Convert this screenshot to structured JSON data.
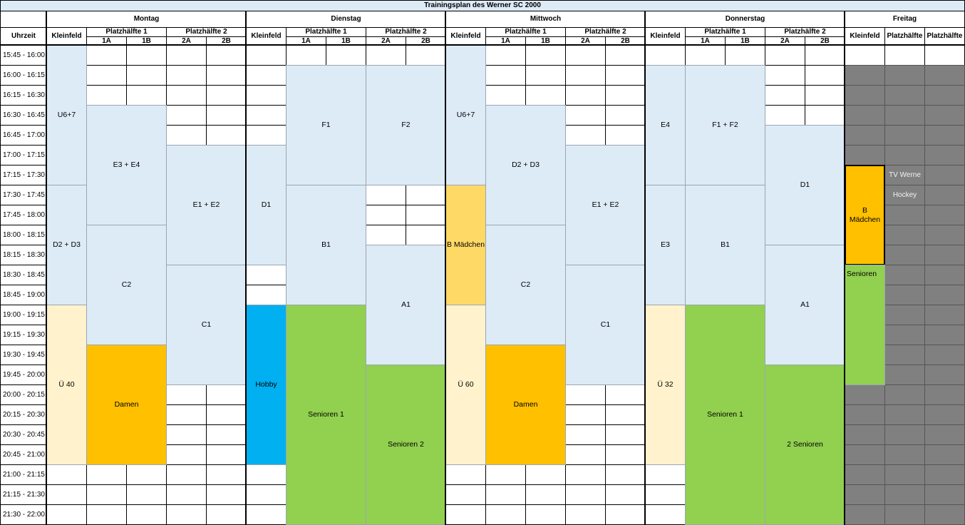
{
  "title": "Trainingsplan des Werner SC 2000",
  "time_header": "Uhrzeit",
  "times": [
    "15:45 - 16:00",
    "16:00 - 16:15",
    "16:15 - 16:30",
    "16:30 - 16:45",
    "16:45 - 17:00",
    "17:00 - 17:15",
    "17:15 - 17:30",
    "17:30 - 17:45",
    "17:45 - 18:00",
    "18:00 - 18:15",
    "18:15 - 18:30",
    "18:30 - 18:45",
    "18:45 - 19:00",
    "19:00 - 19:15",
    "19:15 - 19:30",
    "19:30 - 19:45",
    "19:45 - 20:00",
    "20:00 - 20:15",
    "20:15 - 20:30",
    "20:30 - 20:45",
    "20:45 - 21:00",
    "21:00 - 21:15",
    "21:15 - 21:30",
    "21:30 - 22:00"
  ],
  "days": [
    {
      "name": "Montag",
      "columns": [
        "Kleinfeld",
        "Platzhälfte 1",
        "Platzhälfte 2"
      ],
      "subcolumns": [
        "1A",
        "1B",
        "2A",
        "2B"
      ],
      "blocks": [
        "U6+7",
        "D2 + D3",
        "Ü 40",
        "E3 + E4",
        "C2",
        "Damen",
        "E1 + E2",
        "C1"
      ]
    },
    {
      "name": "Dienstag",
      "columns": [
        "Kleinfeld",
        "Platzhälfte 1",
        "Platzhälfte 2"
      ],
      "subcolumns": [
        "1A",
        "1B",
        "2A",
        "2B"
      ],
      "blocks": [
        "D1",
        "Hobby",
        "F1",
        "B1",
        "Senioren 1",
        "F2",
        "A1",
        "Senioren 2"
      ]
    },
    {
      "name": "Mittwoch",
      "columns": [
        "Kleinfeld",
        "Platzhälfte 1",
        "Platzhälfte 2"
      ],
      "subcolumns": [
        "1A",
        "1B",
        "2A",
        "2B"
      ],
      "blocks": [
        "U6+7",
        "B Mädchen",
        "Ü 60",
        "D2 + D3",
        "C2",
        "Damen",
        "E1 + E2",
        "C1"
      ]
    },
    {
      "name": "Donnerstag",
      "columns": [
        "Kleinfeld",
        "Platzhälfte 1",
        "Platzhälfte 2"
      ],
      "subcolumns": [
        "1A",
        "1B",
        "2A",
        "2B"
      ],
      "blocks": [
        "E4",
        "E3",
        "Ü 32",
        "F1 + F2",
        "B1",
        "Senioren 1",
        "D1",
        "A1",
        "2 Senioren"
      ]
    },
    {
      "name": "Freitag",
      "columns": [
        "Kleinfeld",
        "Platzhälfte",
        "Platzhälfte"
      ],
      "blocks": [
        "B Mädchen",
        "Senioren",
        "TV Werne",
        "Hockey"
      ]
    }
  ]
}
